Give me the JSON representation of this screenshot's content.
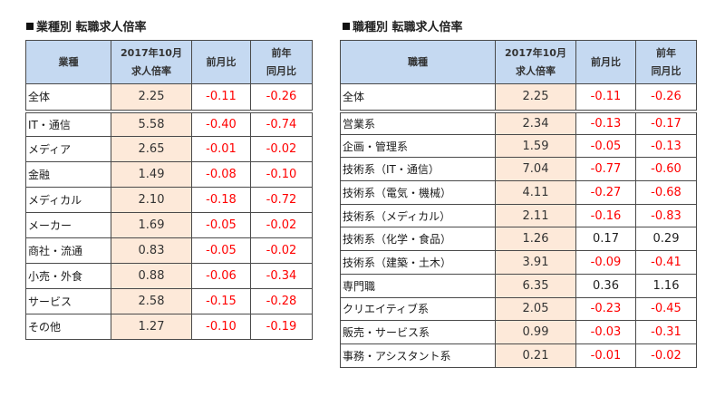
{
  "left_table": {
    "title": "業種別 転職求人倍率",
    "headers": {
      "category": "業種",
      "rate_line1": "2017年10月",
      "rate_line2": "求人倍率",
      "mom": "前月比",
      "yoy_line1": "前年",
      "yoy_line2": "同月比"
    },
    "total": {
      "name": "全体",
      "rate": "2.25",
      "mom": "-0.11",
      "yoy": "-0.26"
    },
    "rows": [
      {
        "name": "IT・通信",
        "rate": "5.58",
        "mom": "-0.40",
        "yoy": "-0.74"
      },
      {
        "name": "メディア",
        "rate": "2.65",
        "mom": "-0.01",
        "yoy": "-0.02"
      },
      {
        "name": "金融",
        "rate": "1.49",
        "mom": "-0.08",
        "yoy": "-0.10"
      },
      {
        "name": "メディカル",
        "rate": "2.10",
        "mom": "-0.18",
        "yoy": "-0.72"
      },
      {
        "name": "メーカー",
        "rate": "1.69",
        "mom": "-0.05",
        "yoy": "-0.02"
      },
      {
        "name": "商社・流通",
        "rate": "0.83",
        "mom": "-0.05",
        "yoy": "-0.02"
      },
      {
        "name": "小売・外食",
        "rate": "0.88",
        "mom": "-0.06",
        "yoy": "-0.34"
      },
      {
        "name": "サービス",
        "rate": "2.58",
        "mom": "-0.15",
        "yoy": "-0.28"
      },
      {
        "name": "その他",
        "rate": "1.27",
        "mom": "-0.10",
        "yoy": "-0.19"
      }
    ]
  },
  "right_table": {
    "title": "職種別 転職求人倍率",
    "headers": {
      "category": "職種",
      "rate_line1": "2017年10月",
      "rate_line2": "求人倍率",
      "mom": "前月比",
      "yoy_line1": "前年",
      "yoy_line2": "同月比"
    },
    "total": {
      "name": "全体",
      "rate": "2.25",
      "mom": "-0.11",
      "yoy": "-0.26"
    },
    "rows": [
      {
        "name": "営業系",
        "rate": "2.34",
        "mom": "-0.13",
        "yoy": "-0.17"
      },
      {
        "name": "企画・管理系",
        "rate": "1.59",
        "mom": "-0.05",
        "yoy": "-0.13"
      },
      {
        "name": "技術系（IT・通信）",
        "rate": "7.04",
        "mom": "-0.77",
        "yoy": "-0.60"
      },
      {
        "name": "技術系（電気・機械）",
        "rate": "4.11",
        "mom": "-0.27",
        "yoy": "-0.68"
      },
      {
        "name": "技術系（メディカル）",
        "rate": "2.11",
        "mom": "-0.16",
        "yoy": "-0.83"
      },
      {
        "name": "技術系（化学・食品）",
        "rate": "1.26",
        "mom": "0.17",
        "yoy": "0.29"
      },
      {
        "name": "技術系（建築・土木）",
        "rate": "3.91",
        "mom": "-0.09",
        "yoy": "-0.41"
      },
      {
        "name": "専門職",
        "rate": "6.35",
        "mom": "0.36",
        "yoy": "1.16"
      },
      {
        "name": "クリエイティブ系",
        "rate": "2.05",
        "mom": "-0.23",
        "yoy": "-0.45"
      },
      {
        "name": "販売・サービス系",
        "rate": "0.99",
        "mom": "-0.03",
        "yoy": "-0.31"
      },
      {
        "name": "事務・アシスタント系",
        "rate": "0.21",
        "mom": "-0.01",
        "yoy": "-0.02"
      }
    ]
  },
  "colors": {
    "header_bg": "#c5d9f1",
    "rate_bg": "#fde9d9",
    "negative_text": "#ff0000",
    "positive_text": "#222222",
    "border": "#4a4a4a"
  }
}
